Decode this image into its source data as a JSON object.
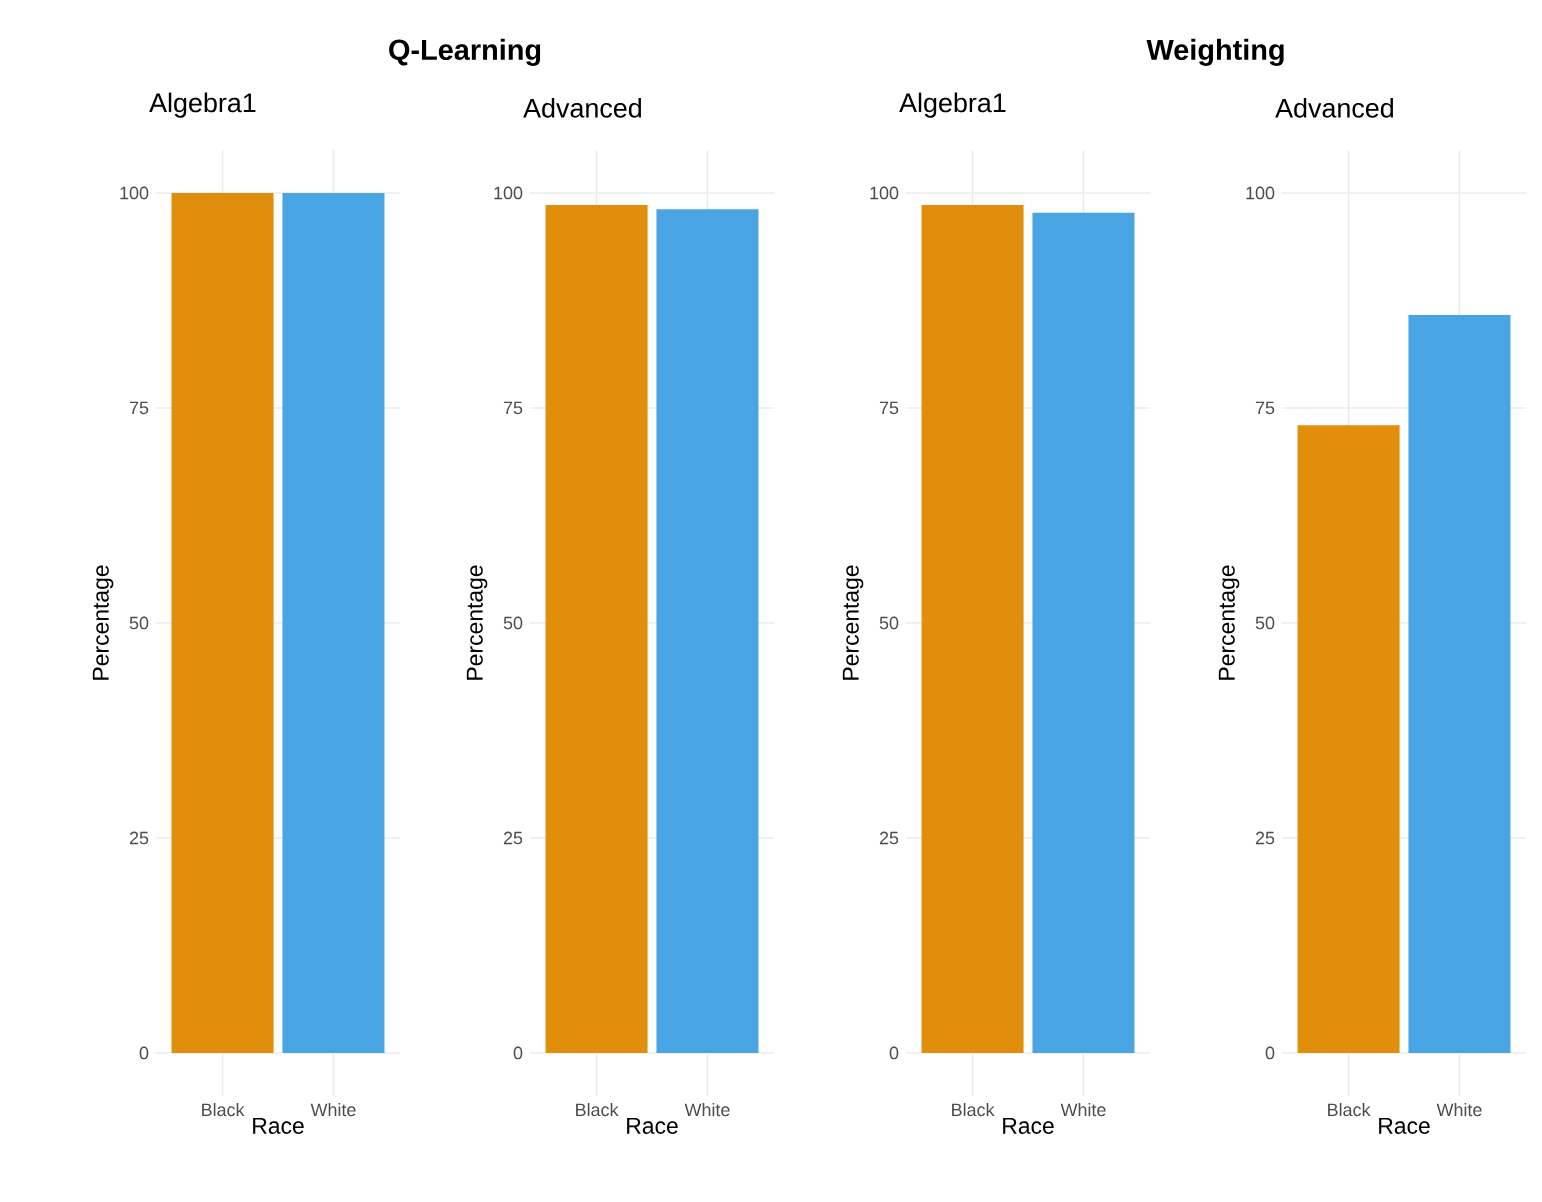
{
  "chart_data": [
    {
      "type": "bar",
      "title": "Q-Learning",
      "subtitle": "Algebra1",
      "categories": [
        "Black",
        "White"
      ],
      "values": [
        100,
        100
      ],
      "colors": [
        "#e08e0b",
        "#48a4e3"
      ],
      "xlabel": "Race",
      "ylabel": "Percentage",
      "ylim": [
        -5,
        105
      ],
      "yticks": [
        0,
        25,
        50,
        75,
        100
      ],
      "grid": true
    },
    {
      "type": "bar",
      "subtitle": "Advanced",
      "categories": [
        "Black",
        "White"
      ],
      "values": [
        98.6,
        98.1
      ],
      "colors": [
        "#e08e0b",
        "#48a4e3"
      ],
      "xlabel": "Race",
      "ylabel": "Percentage",
      "ylim": [
        -5,
        105
      ],
      "yticks": [
        0,
        25,
        50,
        75,
        100
      ],
      "grid": true
    },
    {
      "type": "bar",
      "title": "Weighting",
      "subtitle": "Algebra1",
      "categories": [
        "Black",
        "White"
      ],
      "values": [
        98.6,
        97.7
      ],
      "colors": [
        "#e08e0b",
        "#48a4e3"
      ],
      "xlabel": "Race",
      "ylabel": "Percentage",
      "ylim": [
        -5,
        105
      ],
      "yticks": [
        0,
        25,
        50,
        75,
        100
      ],
      "grid": true
    },
    {
      "type": "bar",
      "subtitle": "Advanced",
      "categories": [
        "Black",
        "White"
      ],
      "values": [
        73,
        85.8
      ],
      "colors": [
        "#e08e0b",
        "#48a4e3"
      ],
      "xlabel": "Race",
      "ylabel": "Percentage",
      "ylim": [
        -5,
        105
      ],
      "yticks": [
        0,
        25,
        50,
        75,
        100
      ],
      "grid": true
    }
  ]
}
